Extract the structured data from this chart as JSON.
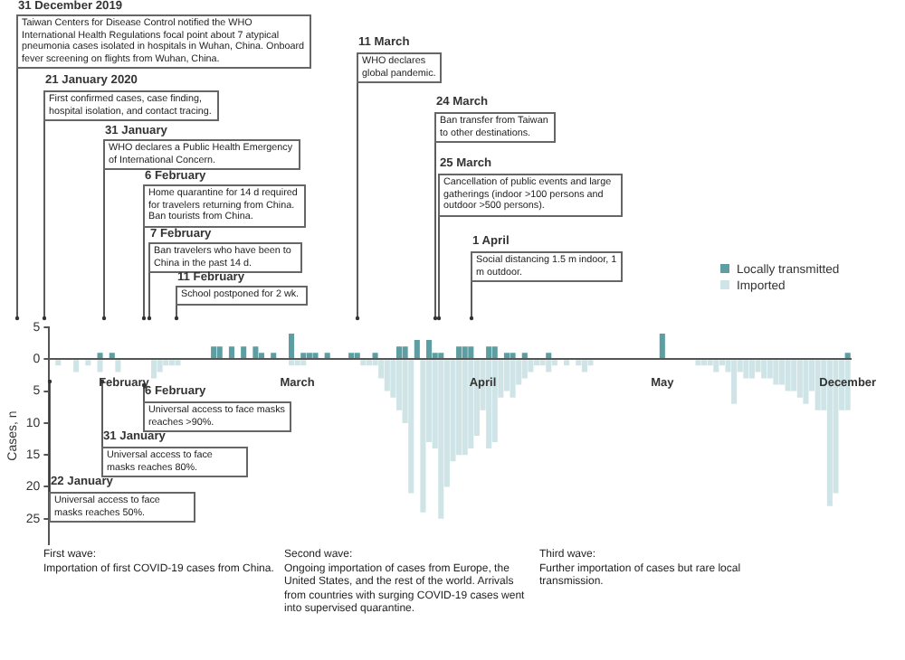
{
  "chart_data": {
    "type": "bar",
    "ylabel": "Cases, n",
    "legend": "top right",
    "categories": [
      null,
      null,
      null,
      null,
      null,
      null,
      null,
      null,
      null,
      null,
      null,
      null,
      "February",
      null,
      null,
      null,
      null,
      null,
      null,
      null,
      null,
      null,
      null,
      null,
      null,
      null,
      null,
      null,
      null,
      null,
      null,
      null,
      null,
      null,
      null,
      null,
      null,
      null,
      null,
      null,
      null,
      "March",
      null,
      null,
      null,
      null,
      null,
      null,
      null,
      null,
      null,
      null,
      null,
      null,
      null,
      null,
      null,
      null,
      null,
      null,
      null,
      null,
      null,
      null,
      null,
      null,
      null,
      null,
      null,
      null,
      null,
      null,
      "April",
      null,
      null,
      null,
      null,
      null,
      null,
      null,
      null,
      null,
      null,
      null,
      null,
      null,
      null,
      null,
      null,
      null,
      null,
      null,
      null,
      null,
      null,
      null,
      null,
      null,
      null,
      null,
      null,
      null,
      "May",
      null,
      null,
      null,
      null,
      null,
      null,
      null,
      null,
      null,
      null,
      null,
      null,
      null,
      null,
      null,
      null,
      null,
      null,
      null,
      null,
      null,
      null,
      null,
      null,
      null,
      null,
      null,
      null,
      null,
      null,
      "December"
    ],
    "series": [
      {
        "name": "Locally transmitted",
        "color": "#5d9ea2",
        "values": [
          null,
          null,
          null,
          null,
          null,
          null,
          null,
          null,
          1,
          null,
          1,
          null,
          null,
          null,
          null,
          null,
          null,
          null,
          null,
          null,
          null,
          null,
          null,
          null,
          null,
          null,
          null,
          2,
          2,
          null,
          2,
          null,
          2,
          null,
          2,
          1,
          null,
          1,
          null,
          null,
          4,
          null,
          1,
          1,
          1,
          null,
          1,
          null,
          null,
          null,
          1,
          1,
          null,
          null,
          1,
          null,
          null,
          null,
          2,
          2,
          null,
          3,
          null,
          3,
          1,
          1,
          null,
          null,
          2,
          2,
          2,
          null,
          null,
          2,
          2,
          null,
          1,
          1,
          null,
          1,
          null,
          null,
          null,
          1,
          null,
          null,
          null,
          null,
          null,
          null,
          null,
          null,
          null,
          null,
          null,
          null,
          null,
          null,
          null,
          null,
          null,
          null,
          4,
          null,
          null,
          null,
          null,
          null,
          null,
          null,
          null,
          null,
          null,
          null,
          null,
          null,
          null,
          null,
          null,
          null,
          null,
          null,
          null,
          null,
          null,
          null,
          null,
          null,
          null,
          null,
          null,
          null,
          null,
          1
        ]
      },
      {
        "name": "Imported",
        "color": "#cfe4e6",
        "values": [
          null,
          -1,
          null,
          null,
          -2,
          null,
          -1,
          null,
          -2,
          null,
          null,
          -2,
          null,
          null,
          null,
          null,
          null,
          -3,
          -2,
          -1,
          -1,
          -1,
          null,
          null,
          null,
          null,
          null,
          null,
          null,
          null,
          null,
          null,
          null,
          null,
          null,
          null,
          null,
          null,
          null,
          null,
          -1,
          -1,
          -1,
          null,
          null,
          null,
          null,
          null,
          null,
          null,
          null,
          null,
          -1,
          -1,
          -1,
          -3,
          -5,
          -6,
          -8,
          -10,
          -21,
          null,
          -24,
          -13,
          -14,
          -25,
          -20,
          -16,
          -15,
          -15,
          -14,
          -12,
          -8,
          -14,
          -13,
          -6,
          -5,
          -6,
          -4,
          -3,
          -2,
          -1,
          -1,
          -2,
          -1,
          null,
          -1,
          null,
          -1,
          -2,
          -1,
          null,
          null,
          null,
          null,
          null,
          null,
          null,
          null,
          null,
          null,
          null,
          null,
          null,
          null,
          null,
          null,
          null,
          -1,
          -1,
          -1,
          -2,
          -1,
          -2,
          -7,
          -2,
          -3,
          -3,
          -2,
          -3,
          -3,
          -4,
          -4,
          -5,
          -5,
          -6,
          -7,
          -5,
          -8,
          -8,
          -23,
          -21,
          -8,
          -8
        ]
      }
    ],
    "ylim": [
      -29,
      5
    ],
    "yticks": [
      5,
      0,
      {
        "value": -5,
        "label": "5"
      },
      {
        "value": -10,
        "label": "10"
      },
      {
        "value": -15,
        "label": "15"
      },
      {
        "value": -20,
        "label": "20"
      },
      {
        "value": -25,
        "label": "25"
      }
    ],
    "annotations": [
      "31 December 2019",
      "Taiwan Centers for Disease Control notified the WHO International Health Regulations focal point about 7 atypical pneumonia cases isolated in hospitals in Wuhan, China. Onboard fever screening on flights from Wuhan, China.",
      "21 January 2020",
      "First confirmed cases, case finding, hospital isolation, and contact tracing.",
      "31 January",
      "WHO declares a Public Health Emergency of International Concern.",
      "6 February",
      "Home quarantine for 14 d required for travelers returning from China. Ban tourists from China.",
      "7 February",
      "Ban travelers who have been to China in the past 14 d.",
      "11 February",
      "School postponed for 2 wk.",
      "11 March",
      "WHO declares global pandemic.",
      "24 March",
      "Ban transfer from Taiwan to other destinations.",
      "25 March",
      "Cancellation of public events and large gatherings (indoor >100 persons and outdoor >500 persons).",
      "1 April",
      "Social distancing 1.5 m indoor, 1 m outdoor.",
      "6 February",
      "Universal access to face masks reaches >90%.",
      "31 January",
      "Universal access to face masks reaches 80%.",
      "22 January",
      "Universal access to face masks reaches 50%.",
      "First wave:",
      "Importation of first COVID-19 cases from China.",
      "Second wave:",
      "Ongoing importation of cases from Europe, the United States, and the rest of the world. Arrivals from countries with surging COVID-19 cases went into supervised quarantine.",
      "Third wave:",
      "Further importation of cases but rare local transmission."
    ]
  }
}
